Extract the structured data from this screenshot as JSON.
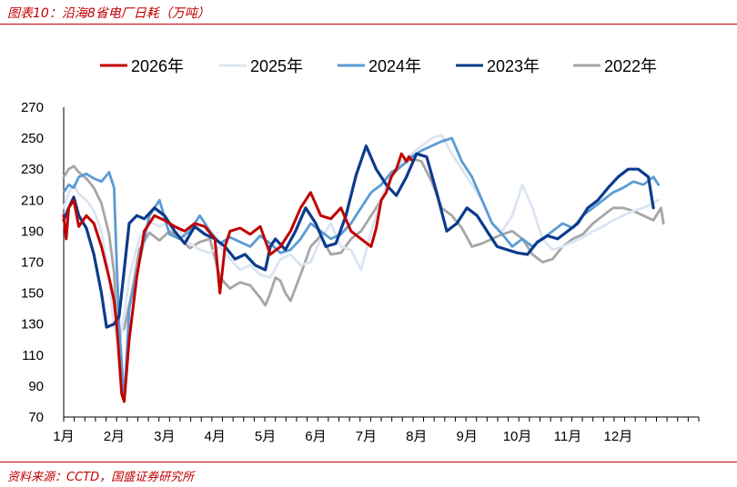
{
  "header": {
    "title": "图表10：沿海8省电厂日耗（万吨）"
  },
  "footer": {
    "source": "资料来源：CCTD，国盛证券研究所"
  },
  "colors": {
    "accent": "#c00000"
  },
  "chart_data": {
    "type": "line",
    "title": "",
    "xlabel": "",
    "ylabel": "",
    "ylim": [
      70,
      270
    ],
    "yticks": [
      70,
      90,
      110,
      130,
      150,
      170,
      190,
      210,
      230,
      250,
      270
    ],
    "xlim": [
      0,
      12.6
    ],
    "xticks": [
      {
        "pos": 0,
        "label": "1月"
      },
      {
        "pos": 1,
        "label": "2月"
      },
      {
        "pos": 2,
        "label": "3月"
      },
      {
        "pos": 3,
        "label": "4月"
      },
      {
        "pos": 4,
        "label": "5月"
      },
      {
        "pos": 5,
        "label": "6月"
      },
      {
        "pos": 6,
        "label": "7月"
      },
      {
        "pos": 7,
        "label": "8月"
      },
      {
        "pos": 8,
        "label": "9月"
      },
      {
        "pos": 9,
        "label": "10月"
      },
      {
        "pos": 10,
        "label": "11月"
      },
      {
        "pos": 11,
        "label": "12月"
      }
    ],
    "grid": false,
    "legend": "top",
    "series": [
      {
        "name": "2022年",
        "color": "#a6a6a6",
        "width": 2.8,
        "x": [
          0,
          0.1,
          0.2,
          0.3,
          0.45,
          0.6,
          0.75,
          0.9,
          1.0,
          1.05,
          1.1,
          1.2,
          1.35,
          1.5,
          1.7,
          1.9,
          2.1,
          2.3,
          2.5,
          2.7,
          2.9,
          3.1,
          3.3,
          3.5,
          3.7,
          3.9,
          4.0,
          4.1,
          4.2,
          4.3,
          4.4,
          4.5,
          4.7,
          4.9,
          5.1,
          5.3,
          5.5,
          5.7,
          5.9,
          6.1,
          6.3,
          6.5,
          6.7,
          6.9,
          7.1,
          7.3,
          7.5,
          7.7,
          7.9,
          8.1,
          8.3,
          8.5,
          8.7,
          8.9,
          9.1,
          9.3,
          9.5,
          9.7,
          9.9,
          10.1,
          10.3,
          10.5,
          10.7,
          10.9,
          11.1,
          11.3,
          11.5,
          11.7,
          11.85,
          11.9
        ],
        "y": [
          225,
          230,
          232,
          228,
          224,
          218,
          208,
          188,
          163,
          128,
          125,
          127,
          150,
          178,
          189,
          184,
          190,
          186,
          179,
          183,
          185,
          160,
          153,
          157,
          155,
          147,
          142,
          150,
          160,
          158,
          150,
          145,
          162,
          180,
          187,
          175,
          176,
          185,
          190,
          200,
          210,
          226,
          232,
          237,
          235,
          222,
          205,
          200,
          192,
          180,
          182,
          185,
          188,
          190,
          185,
          175,
          170,
          172,
          180,
          185,
          188,
          195,
          200,
          205,
          205,
          203,
          200,
          197,
          205,
          195
        ]
      },
      {
        "name": "2025年",
        "color": "#dbe5f1",
        "width": 2.8,
        "x": [
          0,
          0.1,
          0.2,
          0.3,
          0.45,
          0.6,
          0.75,
          0.9,
          1.0,
          1.1,
          1.2,
          1.3,
          1.5,
          1.7,
          1.9,
          2.1,
          2.3,
          2.5,
          2.7,
          2.9,
          3.1,
          3.3,
          3.5,
          3.7,
          3.9,
          4.1,
          4.3,
          4.5,
          4.7,
          4.9,
          5.1,
          5.3,
          5.5,
          5.7,
          5.9,
          6.1,
          6.3,
          6.5,
          6.7,
          6.9,
          7.1,
          7.3,
          7.5,
          7.7,
          7.9,
          8.1,
          8.3,
          8.5,
          8.7,
          8.9,
          9.1,
          9.3,
          9.5,
          9.7,
          9.9,
          10.1,
          10.3,
          10.5,
          10.7,
          10.9,
          11.1,
          11.3,
          11.5,
          11.7,
          11.8
        ],
        "y": [
          205,
          215,
          220,
          214,
          210,
          203,
          190,
          160,
          128,
          115,
          135,
          160,
          185,
          196,
          193,
          196,
          190,
          182,
          178,
          176,
          180,
          172,
          165,
          168,
          162,
          160,
          172,
          175,
          168,
          170,
          185,
          195,
          180,
          178,
          165,
          190,
          210,
          225,
          235,
          240,
          245,
          250,
          252,
          240,
          230,
          220,
          210,
          195,
          190,
          200,
          220,
          205,
          185,
          178,
          180,
          183,
          186,
          190,
          193,
          197,
          200,
          203,
          205,
          208,
          210
        ]
      },
      {
        "name": "2024年",
        "color": "#5b9bd5",
        "width": 2.8,
        "x": [
          0,
          0.1,
          0.2,
          0.3,
          0.45,
          0.6,
          0.75,
          0.9,
          1.0,
          1.05,
          1.1,
          1.2,
          1.3,
          1.5,
          1.7,
          1.9,
          2.1,
          2.3,
          2.5,
          2.7,
          2.9,
          3.1,
          3.3,
          3.5,
          3.7,
          3.9,
          4.1,
          4.3,
          4.5,
          4.7,
          4.9,
          5.1,
          5.3,
          5.5,
          5.7,
          5.9,
          6.1,
          6.3,
          6.5,
          6.7,
          6.9,
          7.1,
          7.3,
          7.5,
          7.7,
          7.9,
          8.1,
          8.3,
          8.5,
          8.7,
          8.9,
          9.1,
          9.3,
          9.5,
          9.7,
          9.9,
          10.1,
          10.3,
          10.5,
          10.7,
          10.9,
          11.1,
          11.3,
          11.5,
          11.7,
          11.8
        ],
        "y": [
          215,
          220,
          218,
          225,
          227,
          224,
          222,
          228,
          218,
          170,
          130,
          80,
          140,
          170,
          200,
          210,
          188,
          185,
          190,
          200,
          190,
          182,
          186,
          183,
          180,
          187,
          182,
          176,
          178,
          185,
          195,
          190,
          185,
          188,
          195,
          205,
          215,
          220,
          228,
          232,
          238,
          242,
          245,
          248,
          250,
          235,
          225,
          210,
          195,
          188,
          180,
          185,
          180,
          185,
          190,
          195,
          192,
          200,
          205,
          210,
          215,
          218,
          222,
          220,
          225,
          220
        ]
      },
      {
        "name": "2023年",
        "color": "#0b3b8c",
        "width": 3.2,
        "x": [
          0,
          0.1,
          0.2,
          0.3,
          0.45,
          0.6,
          0.75,
          0.85,
          1.0,
          1.1,
          1.2,
          1.3,
          1.45,
          1.6,
          1.8,
          2.0,
          2.2,
          2.4,
          2.6,
          2.8,
          3.0,
          3.2,
          3.4,
          3.6,
          3.8,
          4.0,
          4.1,
          4.2,
          4.4,
          4.6,
          4.8,
          5.0,
          5.2,
          5.4,
          5.6,
          5.8,
          6.0,
          6.2,
          6.4,
          6.6,
          6.8,
          7.0,
          7.2,
          7.4,
          7.6,
          7.8,
          8.0,
          8.2,
          8.4,
          8.6,
          8.8,
          9.0,
          9.2,
          9.4,
          9.6,
          9.8,
          10.0,
          10.2,
          10.4,
          10.6,
          10.8,
          11.0,
          11.2,
          11.4,
          11.6,
          11.7
        ],
        "y": [
          197,
          205,
          212,
          200,
          192,
          175,
          150,
          128,
          130,
          135,
          165,
          195,
          200,
          198,
          205,
          200,
          190,
          182,
          193,
          188,
          185,
          180,
          172,
          175,
          168,
          165,
          180,
          185,
          178,
          190,
          205,
          195,
          180,
          182,
          200,
          226,
          245,
          230,
          220,
          213,
          225,
          240,
          238,
          215,
          190,
          195,
          205,
          200,
          190,
          180,
          178,
          176,
          175,
          183,
          187,
          185,
          190,
          195,
          205,
          210,
          218,
          225,
          230,
          230,
          225,
          205
        ]
      },
      {
        "name": "2026年",
        "color": "#c00000",
        "width": 3.0,
        "x": [
          0,
          0.05,
          0.1,
          0.2,
          0.3,
          0.45,
          0.6,
          0.75,
          0.9,
          1.0,
          1.05,
          1.1,
          1.15,
          1.2,
          1.3,
          1.45,
          1.6,
          1.8,
          2.0,
          2.2,
          2.4,
          2.6,
          2.8,
          3.0,
          3.1,
          3.2,
          3.3,
          3.5,
          3.7,
          3.9,
          4.1,
          4.3,
          4.5,
          4.7,
          4.9,
          5.1,
          5.3,
          5.5,
          5.7,
          5.9,
          6.1,
          6.2,
          6.3,
          6.4,
          6.5,
          6.6,
          6.7,
          6.8,
          6.85,
          6.9
        ],
        "y": [
          200,
          185,
          205,
          210,
          193,
          200,
          195,
          180,
          160,
          145,
          130,
          108,
          85,
          80,
          120,
          160,
          190,
          200,
          197,
          193,
          190,
          195,
          193,
          185,
          150,
          180,
          190,
          192,
          188,
          193,
          175,
          180,
          190,
          205,
          215,
          200,
          198,
          205,
          190,
          185,
          180,
          192,
          210,
          215,
          225,
          230,
          240,
          235,
          238,
          236
        ]
      }
    ]
  }
}
